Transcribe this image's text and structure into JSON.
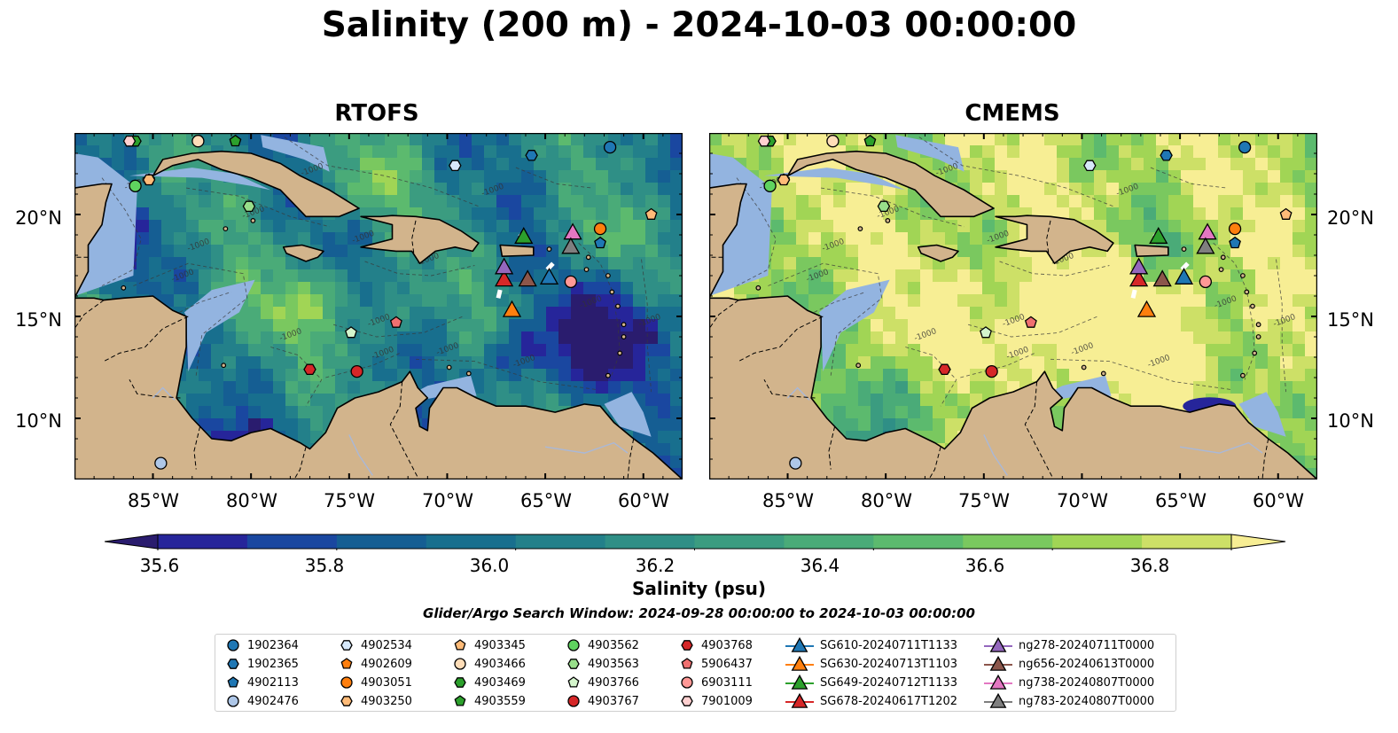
{
  "title": "Salinity (200 m) - 2024-10-03 00:00:00",
  "panels": [
    {
      "title": "RTOFS"
    },
    {
      "title": "CMEMS"
    }
  ],
  "axes": {
    "lon_labels": [
      "85°W",
      "80°W",
      "75°W",
      "70°W",
      "65°W",
      "60°W"
    ],
    "lat_labels": [
      "20°N",
      "15°N",
      "10°N"
    ],
    "lon_values": [
      -85,
      -80,
      -75,
      -70,
      -65,
      -60
    ],
    "lat_values": [
      20,
      15,
      10
    ],
    "lon_range": [
      -89,
      -58
    ],
    "lat_range": [
      7,
      24
    ]
  },
  "colorbar": {
    "label": "Salinity (psu)",
    "min": 35.5,
    "max": 36.9,
    "ticks": [
      "35.6",
      "35.8",
      "36.0",
      "36.2",
      "36.4",
      "36.6",
      "36.8"
    ],
    "tick_values": [
      35.6,
      35.8,
      36.0,
      36.2,
      36.4,
      36.6,
      36.8
    ],
    "colors": [
      "#2a1c6e",
      "#26259a",
      "#1a47a0",
      "#155e93",
      "#186f8e",
      "#23808a",
      "#2f8f86",
      "#3b9c80",
      "#4aab78",
      "#5cba6e",
      "#7ac85f",
      "#a1d555",
      "#cde067",
      "#f7ee94"
    ],
    "land_color": "#d2b48c",
    "shelf_color": "#93b4e0"
  },
  "search_window": "Glider/Argo Search Window: 2024-09-28 00:00:00 to 2024-10-03 00:00:00",
  "legend": {
    "columns": [
      [
        {
          "label": "1902364",
          "marker": "circle",
          "color": "#1f77b4"
        },
        {
          "label": "1902365",
          "marker": "hexagon",
          "color": "#1f77b4"
        },
        {
          "label": "4902113",
          "marker": "pentagon",
          "color": "#1f77b4"
        },
        {
          "label": "4902476",
          "marker": "circle",
          "color": "#aec7e8"
        }
      ],
      [
        {
          "label": "4902534",
          "marker": "hexagon",
          "color": "#d6e8fa"
        },
        {
          "label": "4902609",
          "marker": "pentagon",
          "color": "#ff7f0e"
        },
        {
          "label": "4903051",
          "marker": "circle",
          "color": "#ff7f0e"
        },
        {
          "label": "4903250",
          "marker": "hexagon",
          "color": "#ffbb78"
        }
      ],
      [
        {
          "label": "4903345",
          "marker": "pentagon",
          "color": "#ffbb78"
        },
        {
          "label": "4903466",
          "marker": "circle",
          "color": "#ffddb8"
        },
        {
          "label": "4903469",
          "marker": "hexagon",
          "color": "#2ca02c"
        },
        {
          "label": "4903559",
          "marker": "pentagon",
          "color": "#2ca02c"
        }
      ],
      [
        {
          "label": "4903562",
          "marker": "circle",
          "color": "#5fd35f"
        },
        {
          "label": "4903563",
          "marker": "hexagon",
          "color": "#98df8a"
        },
        {
          "label": "4903766",
          "marker": "pentagon",
          "color": "#d4f5cc"
        },
        {
          "label": "4903767",
          "marker": "circle",
          "color": "#d62728"
        }
      ],
      [
        {
          "label": "4903768",
          "marker": "hexagon",
          "color": "#d62728"
        },
        {
          "label": "5906437",
          "marker": "pentagon",
          "color": "#f07070"
        },
        {
          "label": "6903111",
          "marker": "circle",
          "color": "#ff9896"
        },
        {
          "label": "7901009",
          "marker": "hexagon",
          "color": "#ffd0d0"
        }
      ],
      [
        {
          "label": "SG610-20240711T1133",
          "marker": "triangle",
          "color": "#1f77b4"
        },
        {
          "label": "SG630-20240713T1103",
          "marker": "triangle",
          "color": "#ff7f0e"
        },
        {
          "label": "SG649-20240712T1133",
          "marker": "triangle",
          "color": "#2ca02c"
        },
        {
          "label": "SG678-20240617T1202",
          "marker": "triangle",
          "color": "#d62728"
        }
      ],
      [
        {
          "label": "ng278-20240711T0000",
          "marker": "triangle",
          "color": "#9467bd"
        },
        {
          "label": "ng656-20240613T0000",
          "marker": "triangle",
          "color": "#8c564b"
        },
        {
          "label": "ng738-20240807T0000",
          "marker": "triangle",
          "color": "#e377c2"
        },
        {
          "label": "ng783-20240807T0000",
          "marker": "triangle",
          "color": "#7f7f7f"
        }
      ]
    ]
  },
  "floats": [
    {
      "id": "1902364",
      "lon": -61.7,
      "lat": 23.3
    },
    {
      "id": "1902365",
      "lon": -65.7,
      "lat": 22.9
    },
    {
      "id": "4902113",
      "lon": -62.2,
      "lat": 18.6
    },
    {
      "id": "4902476",
      "lon": -84.6,
      "lat": 7.8
    },
    {
      "id": "4902534",
      "lon": -69.6,
      "lat": 22.4
    },
    {
      "id": "4902609",
      "lon": -85.2,
      "lat": 21.7
    },
    {
      "id": "4903051",
      "lon": -62.2,
      "lat": 19.3
    },
    {
      "id": "4903250",
      "lon": -85.2,
      "lat": 21.7
    },
    {
      "id": "4903345",
      "lon": -59.6,
      "lat": 20.0
    },
    {
      "id": "4903466",
      "lon": -82.7,
      "lat": 23.6
    },
    {
      "id": "4903469",
      "lon": -85.9,
      "lat": 23.6
    },
    {
      "id": "4903559",
      "lon": -80.8,
      "lat": 23.6
    },
    {
      "id": "4903562",
      "lon": -85.9,
      "lat": 21.4
    },
    {
      "id": "4903563",
      "lon": -80.1,
      "lat": 20.4
    },
    {
      "id": "4903766",
      "lon": -74.9,
      "lat": 14.2
    },
    {
      "id": "4903767",
      "lon": -74.6,
      "lat": 12.3
    },
    {
      "id": "4903768",
      "lon": -77.0,
      "lat": 12.4
    },
    {
      "id": "5906437",
      "lon": -72.6,
      "lat": 14.7
    },
    {
      "id": "6903111",
      "lon": -63.7,
      "lat": 16.7
    },
    {
      "id": "7901009",
      "lon": -86.2,
      "lat": 23.6
    }
  ],
  "gliders": [
    {
      "id": "SG610-20240711T1133",
      "lon": -64.8,
      "lat": 16.9
    },
    {
      "id": "SG630-20240713T1103",
      "lon": -66.7,
      "lat": 15.3
    },
    {
      "id": "SG649-20240712T1133",
      "lon": -66.1,
      "lat": 18.9
    },
    {
      "id": "SG678-20240617T1202",
      "lon": -67.1,
      "lat": 16.8
    },
    {
      "id": "ng278-20240711T0000",
      "lon": -67.1,
      "lat": 17.4
    },
    {
      "id": "ng656-20240613T0000",
      "lon": -65.9,
      "lat": 16.8
    },
    {
      "id": "ng738-20240807T0000",
      "lon": -63.6,
      "lat": 19.1
    },
    {
      "id": "ng783-20240807T0000",
      "lon": -63.7,
      "lat": 18.4
    }
  ]
}
